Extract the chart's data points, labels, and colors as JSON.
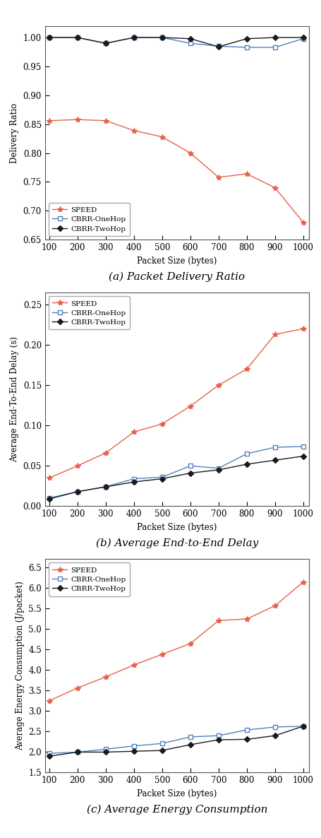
{
  "x": [
    100,
    200,
    300,
    400,
    500,
    600,
    700,
    800,
    900,
    1000
  ],
  "plot_a": {
    "caption": "(a) Packet Delivery Ratio",
    "ylabel": "Delivery Ratio",
    "xlabel": "Packet Size (bytes)",
    "ylim": [
      0.65,
      1.02
    ],
    "yticks": [
      0.65,
      0.7,
      0.75,
      0.8,
      0.85,
      0.9,
      0.95,
      1.0
    ],
    "speed": [
      0.856,
      0.858,
      0.856,
      0.839,
      0.828,
      0.8,
      0.758,
      0.764,
      0.74,
      0.68
    ],
    "onehop": [
      1.0,
      1.0,
      0.99,
      1.0,
      1.0,
      0.99,
      0.985,
      0.983,
      0.983,
      0.998
    ],
    "twohop": [
      1.0,
      1.0,
      0.99,
      1.0,
      1.0,
      0.998,
      0.984,
      0.998,
      1.0,
      1.0
    ]
  },
  "plot_b": {
    "caption": "(b) Average End-to-End Delay",
    "ylabel": "Average End-To-End Delay (s)",
    "xlabel": "Packet Size (bytes)",
    "ylim": [
      0,
      0.265
    ],
    "yticks": [
      0.0,
      0.05,
      0.1,
      0.15,
      0.2,
      0.25
    ],
    "speed": [
      0.035,
      0.05,
      0.066,
      0.092,
      0.102,
      0.124,
      0.15,
      0.17,
      0.213,
      0.22
    ],
    "onehop": [
      0.01,
      0.018,
      0.024,
      0.034,
      0.036,
      0.05,
      0.047,
      0.065,
      0.073,
      0.074
    ],
    "twohop": [
      0.009,
      0.018,
      0.024,
      0.03,
      0.034,
      0.041,
      0.045,
      0.052,
      0.057,
      0.062
    ]
  },
  "plot_c": {
    "caption": "(c) Average Energy Consumption",
    "ylabel": "Average Energy Consumption (J/packet)",
    "xlabel": "Packet Size (bytes)",
    "ylim": [
      1.5,
      6.7
    ],
    "yticks": [
      1.5,
      2.0,
      2.5,
      3.0,
      3.5,
      4.0,
      4.5,
      5.0,
      5.5,
      6.0,
      6.5
    ],
    "speed": [
      3.25,
      3.56,
      3.83,
      4.12,
      4.38,
      4.64,
      5.2,
      5.24,
      5.56,
      6.14
    ],
    "onehop": [
      1.97,
      2.0,
      2.07,
      2.15,
      2.21,
      2.37,
      2.4,
      2.54,
      2.61,
      2.63
    ],
    "twohop": [
      1.9,
      2.0,
      2.0,
      2.02,
      2.04,
      2.18,
      2.3,
      2.31,
      2.4,
      2.63
    ]
  },
  "speed_color": "#E8604C",
  "onehop_color": "#4F81BD",
  "twohop_color": "#1A1A1A",
  "xlim": [
    85,
    1020
  ]
}
